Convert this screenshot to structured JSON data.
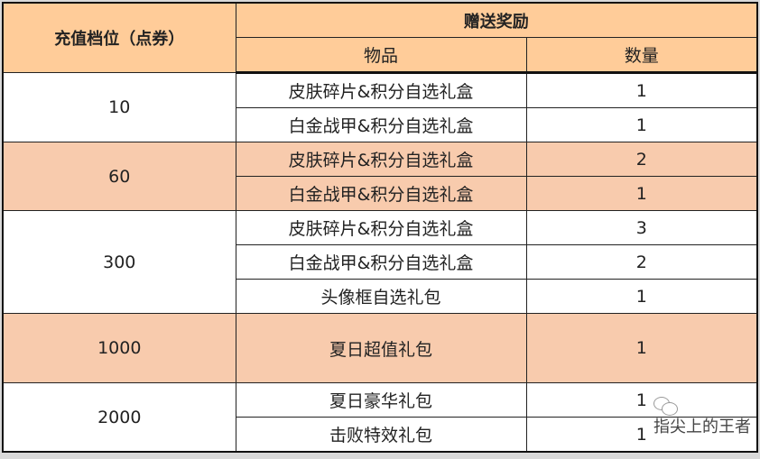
{
  "header": {
    "tier": "充值档位（点券）",
    "reward": "赠送奖励",
    "item": "物品",
    "qty": "数量"
  },
  "rows": [
    {
      "tier": "10",
      "shaded": false,
      "items": [
        {
          "name": "皮肤碎片&积分自选礼盒",
          "qty": "1"
        },
        {
          "name": "白金战甲&积分自选礼盒",
          "qty": "1"
        }
      ]
    },
    {
      "tier": "60",
      "shaded": true,
      "items": [
        {
          "name": "皮肤碎片&积分自选礼盒",
          "qty": "2"
        },
        {
          "name": "白金战甲&积分自选礼盒",
          "qty": "1"
        }
      ]
    },
    {
      "tier": "300",
      "shaded": false,
      "items": [
        {
          "name": "皮肤碎片&积分自选礼盒",
          "qty": "3"
        },
        {
          "name": "白金战甲&积分自选礼盒",
          "qty": "2"
        },
        {
          "name": "头像框自选礼包",
          "qty": "1"
        }
      ]
    },
    {
      "tier": "1000",
      "shaded": true,
      "items": [
        {
          "name": "夏日超值礼包",
          "qty": "1"
        }
      ]
    },
    {
      "tier": "2000",
      "shaded": false,
      "items": [
        {
          "name": "夏日豪华礼包",
          "qty": "1"
        },
        {
          "name": "击败特效礼包",
          "qty": "1"
        }
      ]
    }
  ],
  "watermark": {
    "text": "指尖上的王者",
    "icon": "wechat-icon"
  },
  "colors": {
    "header": "#ffcc99",
    "shaded": "#f8cbad"
  }
}
